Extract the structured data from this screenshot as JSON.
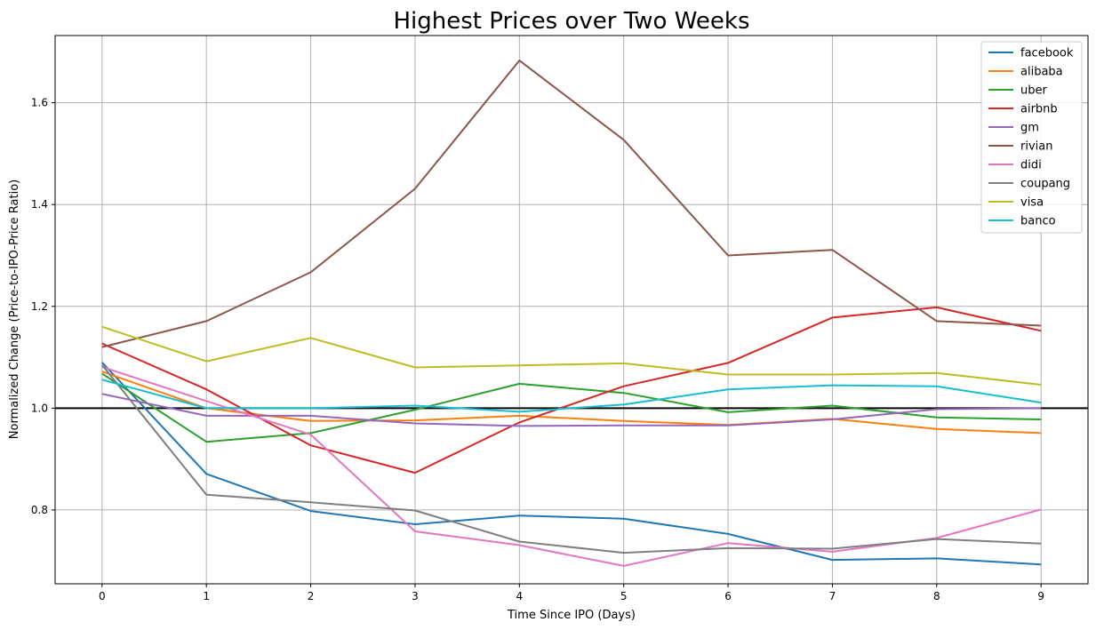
{
  "chart_data": {
    "type": "line",
    "title": "Highest Prices over Two Weeks",
    "xlabel": "Time Since IPO (Days)",
    "ylabel": "Normalized Change (Price-to-IPO-Price Ratio)",
    "x": [
      0,
      1,
      2,
      3,
      4,
      5,
      6,
      7,
      8,
      9
    ],
    "xlim": [
      -0.45,
      9.45
    ],
    "ylim": [
      0.655,
      1.732
    ],
    "xticks": [
      0,
      1,
      2,
      3,
      4,
      5,
      6,
      7,
      8,
      9
    ],
    "yticks": [
      0.8,
      1.0,
      1.2,
      1.4,
      1.6
    ],
    "ytick_labels": [
      "0.8",
      "1.0",
      "1.2",
      "1.4",
      "1.6"
    ],
    "grid": true,
    "legend_position": "top-right",
    "reference_line": {
      "y": 1.0,
      "color": "#000000"
    },
    "series": [
      {
        "name": "facebook",
        "color": "#1f77b4",
        "values": [
          1.09,
          0.871,
          0.798,
          0.772,
          0.789,
          0.783,
          0.753,
          0.702,
          0.705,
          0.693
        ]
      },
      {
        "name": "alibaba",
        "color": "#ff7f0e",
        "values": [
          1.072,
          1.0,
          0.975,
          0.976,
          0.985,
          0.975,
          0.967,
          0.979,
          0.959,
          0.951
        ]
      },
      {
        "name": "uber",
        "color": "#2ca02c",
        "values": [
          1.068,
          0.934,
          0.951,
          0.997,
          1.048,
          1.03,
          0.992,
          1.005,
          0.982,
          0.978
        ]
      },
      {
        "name": "airbnb",
        "color": "#d62728",
        "values": [
          1.127,
          1.037,
          0.927,
          0.873,
          0.972,
          1.043,
          1.089,
          1.178,
          1.198,
          1.152
        ]
      },
      {
        "name": "gm",
        "color": "#9467bd",
        "values": [
          1.028,
          0.985,
          0.985,
          0.97,
          0.965,
          0.966,
          0.966,
          0.978,
          0.998,
          1.0
        ]
      },
      {
        "name": "rivian",
        "color": "#8c564b",
        "values": [
          1.12,
          1.171,
          1.267,
          1.431,
          1.683,
          1.527,
          1.3,
          1.311,
          1.171,
          1.162
        ]
      },
      {
        "name": "didi",
        "color": "#e377c2",
        "values": [
          1.081,
          1.014,
          0.948,
          0.758,
          0.731,
          0.69,
          0.735,
          0.718,
          0.745,
          0.801
        ]
      },
      {
        "name": "coupang",
        "color": "#7f7f7f",
        "values": [
          1.085,
          0.83,
          0.815,
          0.799,
          0.738,
          0.716,
          0.725,
          0.724,
          0.743,
          0.734
        ]
      },
      {
        "name": "visa",
        "color": "#bcbd22",
        "values": [
          1.16,
          1.092,
          1.138,
          1.08,
          1.084,
          1.088,
          1.066,
          1.066,
          1.069,
          1.046
        ]
      },
      {
        "name": "banco",
        "color": "#17becf",
        "values": [
          1.056,
          1.0,
          1.0,
          1.005,
          0.993,
          1.007,
          1.037,
          1.045,
          1.043,
          1.011
        ]
      }
    ]
  }
}
